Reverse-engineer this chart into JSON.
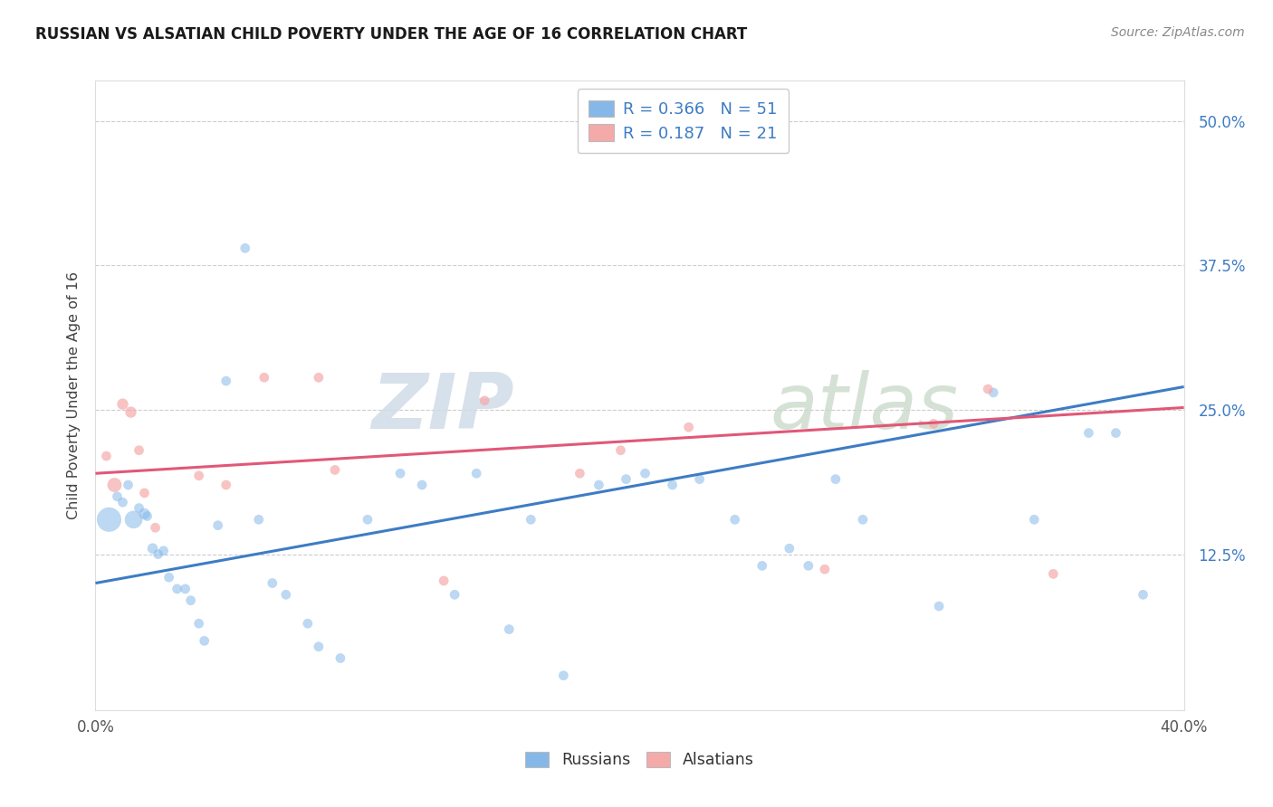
{
  "title": "RUSSIAN VS ALSATIAN CHILD POVERTY UNDER THE AGE OF 16 CORRELATION CHART",
  "source": "Source: ZipAtlas.com",
  "ylabel": "Child Poverty Under the Age of 16",
  "xlim": [
    0.0,
    0.4
  ],
  "ylim": [
    -0.01,
    0.535
  ],
  "yticks": [
    0.125,
    0.25,
    0.375,
    0.5
  ],
  "ytick_labels": [
    "12.5%",
    "25.0%",
    "37.5%",
    "50.0%"
  ],
  "xtick_labels": [
    "0.0%",
    "40.0%"
  ],
  "xticks": [
    0.0,
    0.4
  ],
  "legend1_text1": "R = 0.366   N = 51",
  "legend1_text2": "R = 0.187   N = 21",
  "legend2_label1": "Russians",
  "legend2_label2": "Alsatians",
  "russian_color": "#85B8E8",
  "alsatian_color": "#F5AAAA",
  "russian_line_color": "#3E7CC4",
  "alsatian_line_color": "#E05878",
  "watermark_zip": "ZIP",
  "watermark_atlas": "atlas",
  "russian_x": [
    0.005,
    0.008,
    0.01,
    0.012,
    0.014,
    0.016,
    0.018,
    0.019,
    0.021,
    0.023,
    0.025,
    0.027,
    0.03,
    0.033,
    0.035,
    0.038,
    0.04,
    0.045,
    0.048,
    0.055,
    0.06,
    0.065,
    0.07,
    0.078,
    0.082,
    0.09,
    0.1,
    0.112,
    0.12,
    0.132,
    0.14,
    0.152,
    0.16,
    0.172,
    0.185,
    0.195,
    0.202,
    0.212,
    0.222,
    0.235,
    0.245,
    0.255,
    0.262,
    0.272,
    0.282,
    0.31,
    0.33,
    0.345,
    0.365,
    0.375,
    0.385
  ],
  "russian_y": [
    0.155,
    0.175,
    0.17,
    0.185,
    0.155,
    0.165,
    0.16,
    0.158,
    0.13,
    0.125,
    0.128,
    0.105,
    0.095,
    0.095,
    0.085,
    0.065,
    0.05,
    0.15,
    0.275,
    0.39,
    0.155,
    0.1,
    0.09,
    0.065,
    0.045,
    0.035,
    0.155,
    0.195,
    0.185,
    0.09,
    0.195,
    0.06,
    0.155,
    0.02,
    0.185,
    0.19,
    0.195,
    0.185,
    0.19,
    0.155,
    0.115,
    0.13,
    0.115,
    0.19,
    0.155,
    0.08,
    0.265,
    0.155,
    0.23,
    0.23,
    0.09
  ],
  "russian_size": [
    380,
    60,
    60,
    60,
    200,
    60,
    80,
    60,
    70,
    60,
    60,
    60,
    60,
    60,
    60,
    60,
    60,
    60,
    60,
    60,
    60,
    60,
    60,
    60,
    60,
    60,
    60,
    60,
    60,
    60,
    60,
    60,
    60,
    60,
    60,
    60,
    60,
    60,
    60,
    60,
    60,
    60,
    60,
    60,
    60,
    60,
    60,
    60,
    60,
    60,
    60
  ],
  "alsatian_x": [
    0.004,
    0.007,
    0.01,
    0.013,
    0.016,
    0.018,
    0.022,
    0.038,
    0.048,
    0.062,
    0.082,
    0.088,
    0.128,
    0.143,
    0.178,
    0.193,
    0.218,
    0.268,
    0.308,
    0.328,
    0.352
  ],
  "alsatian_y": [
    0.21,
    0.185,
    0.255,
    0.248,
    0.215,
    0.178,
    0.148,
    0.193,
    0.185,
    0.278,
    0.278,
    0.198,
    0.102,
    0.258,
    0.195,
    0.215,
    0.235,
    0.112,
    0.238,
    0.268,
    0.108
  ],
  "alsatian_size": [
    60,
    130,
    80,
    80,
    60,
    60,
    60,
    60,
    60,
    60,
    60,
    60,
    60,
    60,
    60,
    60,
    60,
    60,
    60,
    60,
    60
  ],
  "russian_line_x": [
    0.0,
    0.4
  ],
  "russian_line_y": [
    0.1,
    0.27
  ],
  "alsatian_line_x": [
    0.0,
    0.4
  ],
  "alsatian_line_y": [
    0.195,
    0.252
  ]
}
